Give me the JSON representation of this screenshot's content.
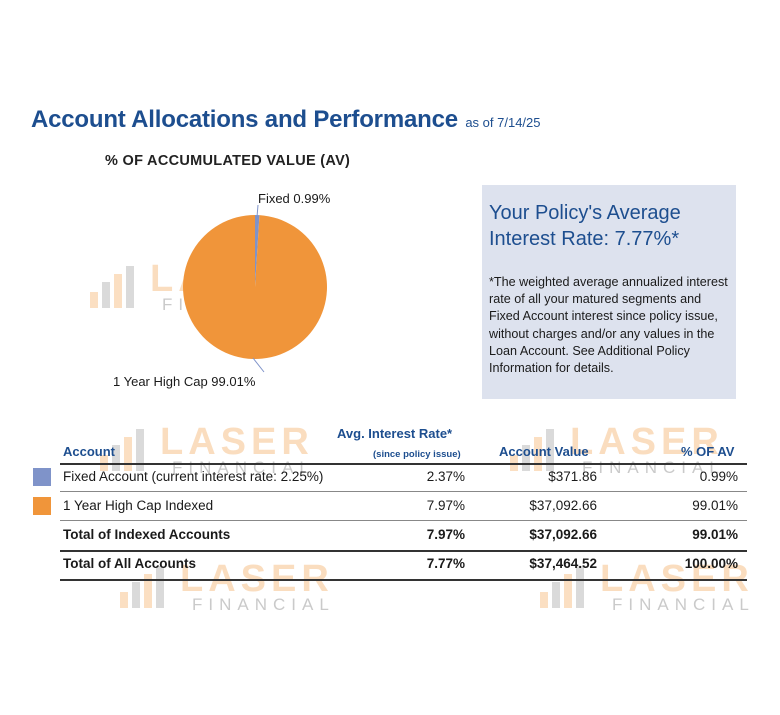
{
  "header": {
    "title": "Account Allocations and Performance",
    "as_of": "as of 7/14/25",
    "subheading": "% OF ACCUMULATED VALUE (AV)"
  },
  "chart_data": {
    "type": "pie",
    "title": "% OF ACCUMULATED VALUE (AV)",
    "slices": [
      {
        "name": "Fixed",
        "label": "Fixed 0.99%",
        "value": 0.99,
        "color": "#7f93c9"
      },
      {
        "name": "1 Year High Cap",
        "label": "1 Year High Cap 99.01%",
        "value": 99.01,
        "color": "#f0953a"
      }
    ]
  },
  "info_box": {
    "headline": "Your Policy's Average Interest Rate: 7.77%*",
    "note": "*The weighted average annualized interest rate of all your matured segments and Fixed Account interest since policy issue, without charges and/or any values in the Loan Account. See Additional Policy Information for details."
  },
  "table": {
    "headers": {
      "account": "Account",
      "rate": "Avg. Interest Rate*",
      "rate_sub": "(since policy issue)",
      "value": "Account Value",
      "pct": "% OF AV"
    },
    "rows": [
      {
        "account": "Fixed Account (current interest rate: 2.25%)",
        "rate": "2.37%",
        "value": "$371.86",
        "pct": "0.99%",
        "color": "#7f93c9"
      },
      {
        "account": "1 Year High Cap Indexed",
        "rate": "7.97%",
        "value": "$37,092.66",
        "pct": "99.01%",
        "color": "#f0953a"
      }
    ],
    "totals": [
      {
        "account": "Total of Indexed Accounts",
        "rate": "7.97%",
        "value": "$37,092.66",
        "pct": "99.01%"
      },
      {
        "account": "Total of All Accounts",
        "rate": "7.77%",
        "value": "$37,464.52",
        "pct": "100.00%"
      }
    ]
  },
  "watermark": {
    "word": "LASER",
    "sub": "FINANCIAL"
  }
}
